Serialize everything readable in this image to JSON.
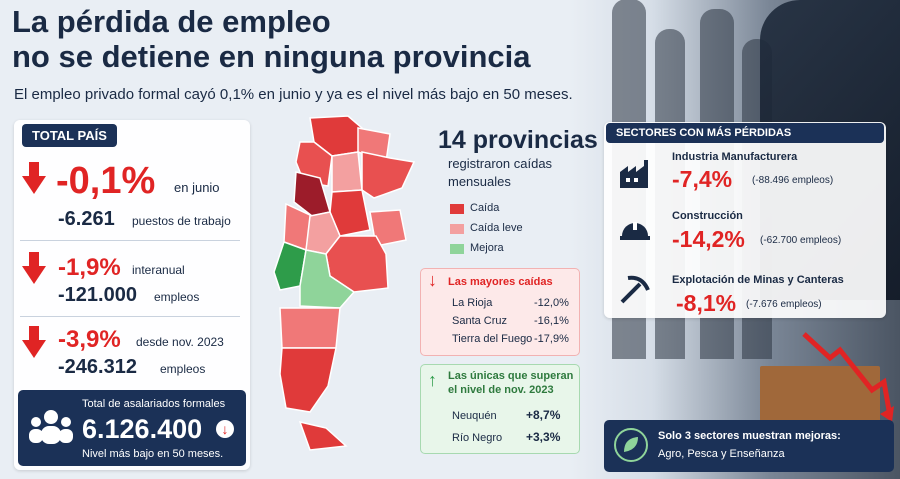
{
  "header": {
    "title_line1": "La pérdida de empleo",
    "title_line2": "no se detiene en ninguna provincia",
    "subtitle": "El empleo privado formal cayó 0,1% en junio y ya es el nivel más bajo en 50 meses."
  },
  "total": {
    "badge": "TOTAL PAÍS",
    "monthly_pct": "-0,1%",
    "monthly_label": "en junio",
    "monthly_jobs": "-6.261",
    "monthly_jobs_label": "puestos de trabajo",
    "annual_pct": "-1,9%",
    "annual_label": "interanual",
    "annual_jobs": "-121.000",
    "annual_jobs_label": "empleos",
    "since_pct": "-3,9%",
    "since_label": "desde nov. 2023",
    "since_jobs": "-246.312",
    "since_jobs_label": "empleos",
    "wage_label": "Total de asalariados formales",
    "wage_value": "6.126.400",
    "wage_note": "Nivel más bajo en 50 meses."
  },
  "provinces": {
    "count": "14 provincias",
    "desc_line1": "registraron caídas",
    "desc_line2": "mensuales",
    "legend": [
      {
        "label": "Caída",
        "color": "#e03a3a"
      },
      {
        "label": "Caída leve",
        "color": "#f3a0a0"
      },
      {
        "label": "Mejora",
        "color": "#8fd49a"
      }
    ],
    "falls_title": "Las mayores caídas",
    "falls": [
      {
        "name": "La Rioja",
        "value": "-12,0%"
      },
      {
        "name": "Santa Cruz",
        "value": "-16,1%"
      },
      {
        "name": "Tierra del Fuego",
        "value": "-17,9%"
      }
    ],
    "gains_title_line1": "Las únicas que superan",
    "gains_title_line2": "el nivel de nov. 2023",
    "gains": [
      {
        "name": "Neuquén",
        "value": "+8,7%"
      },
      {
        "name": "Río Negro",
        "value": "+3,3%"
      }
    ]
  },
  "sectors": {
    "title": "SECTORES CON MÁS PÉRDIDAS",
    "items": [
      {
        "name": "Industria Manufacturera",
        "pct": "-7,4%",
        "jobs": "(-88.496 empleos)",
        "icon": "factory-icon"
      },
      {
        "name": "Construcción",
        "pct": "-14,2%",
        "jobs": "(-62.700 empleos)",
        "icon": "helmet-icon"
      },
      {
        "name": "Explotación de Minas y Canteras",
        "pct": "-8,1%",
        "jobs": "(-7.676 empleos)",
        "icon": "pickaxe-icon"
      }
    ],
    "note_line1": "Solo 3 sectores muestran mejoras:",
    "note_line2": "Agro, Pesca y Enseñanza"
  }
}
